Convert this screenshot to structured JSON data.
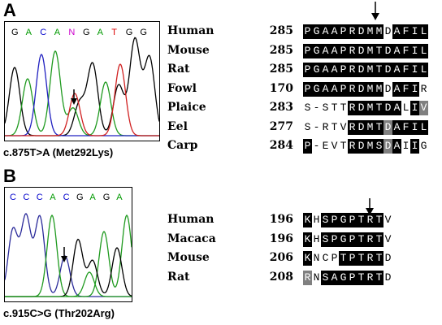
{
  "panels": [
    {
      "label": "A",
      "chromatogram": {
        "bases": [
          {
            "letter": "G",
            "color": "#000000"
          },
          {
            "letter": "A",
            "color": "#009900"
          },
          {
            "letter": "C",
            "color": "#0000cc"
          },
          {
            "letter": "A",
            "color": "#009900"
          },
          {
            "letter": "N",
            "color": "#cc00cc"
          },
          {
            "letter": "G",
            "color": "#000000"
          },
          {
            "letter": "A",
            "color": "#009900"
          },
          {
            "letter": "T",
            "color": "#dd0000"
          },
          {
            "letter": "G",
            "color": "#000000"
          },
          {
            "letter": "G",
            "color": "#000000"
          }
        ],
        "caption": "c.875T>A (Met292Lys)"
      },
      "alignment": [
        {
          "species": "Human",
          "start": "285",
          "seq": "PGAAPRDMMDAFIL"
        },
        {
          "species": "Mouse",
          "start": "285",
          "seq": "PGAAPRDMTDAFIL"
        },
        {
          "species": "Rat",
          "start": "285",
          "seq": "PGAAPRDMTDAFIL"
        },
        {
          "species": "Fowl",
          "start": "170",
          "seq": "PGAAPRDMMDAFIR"
        },
        {
          "species": "Plaice",
          "start": "283",
          "seq": "S-STTRDMTDALIV"
        },
        {
          "species": "Eel",
          "start": "277",
          "seq": "S-RTVRDMTDAFIL"
        },
        {
          "species": "Carp",
          "start": "284",
          "seq": "P-EVTRDMSDAIIG"
        }
      ],
      "shading": [
        "BBBBBBBBBWBBBB",
        "BBBBBBBBBBBBBB",
        "BBBBBBBBBBBBBB",
        "BBBBBBBBBWBBBW",
        "WWWWWBBBBBBWBG",
        "WWWWWBBBBGBBBB",
        "BWWWWBBBBGBWBW"
      ]
    },
    {
      "label": "B",
      "chromatogram": {
        "bases": [
          {
            "letter": "C",
            "color": "#0000cc"
          },
          {
            "letter": "C",
            "color": "#0000cc"
          },
          {
            "letter": "C",
            "color": "#0000cc"
          },
          {
            "letter": "A",
            "color": "#009900"
          },
          {
            "letter": "C",
            "color": "#0000cc"
          },
          {
            "letter": "G",
            "color": "#000000"
          },
          {
            "letter": "A",
            "color": "#009900"
          },
          {
            "letter": "G",
            "color": "#000000"
          },
          {
            "letter": "A",
            "color": "#009900"
          }
        ],
        "caption": "c.915C>G (Thr202Arg)"
      },
      "alignment": [
        {
          "species": "Human",
          "start": "196",
          "seq": "KHSPGPTRTV"
        },
        {
          "species": "Macaca",
          "start": "196",
          "seq": "KHSPGPTRTV"
        },
        {
          "species": "Mouse",
          "start": "206",
          "seq": "KNCPTPTRTD"
        },
        {
          "species": "Rat",
          "start": "208",
          "seq": "RNSAGPTRTD"
        }
      ],
      "shading": [
        "BWBBBBBBBW",
        "BWBBBBBBBW",
        "BWWWBBBBBW",
        "GWBBBBBBBW"
      ]
    }
  ]
}
